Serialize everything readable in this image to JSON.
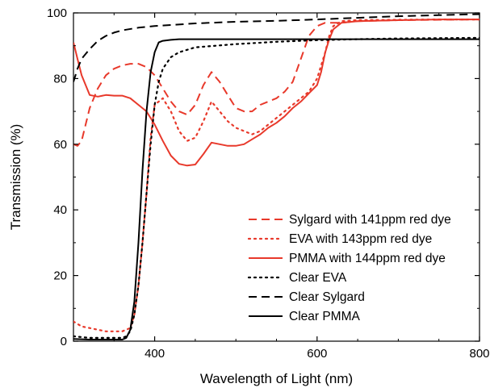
{
  "chart_data": {
    "type": "line",
    "xlabel": "Wavelength of Light (nm)",
    "ylabel": "Transmission (%)",
    "xlim": [
      300,
      800
    ],
    "ylim": [
      0,
      100
    ],
    "x_ticks": [
      400,
      600,
      800
    ],
    "y_ticks": [
      0,
      20,
      40,
      60,
      80,
      100
    ],
    "legend_position": "center-right",
    "series": [
      {
        "name": "Sylgard with 141ppm red dye",
        "color": "#e8392b",
        "dash": "dashed",
        "x": [
          300,
          305,
          310,
          315,
          320,
          330,
          340,
          350,
          360,
          370,
          380,
          390,
          400,
          410,
          420,
          430,
          440,
          450,
          460,
          470,
          480,
          490,
          500,
          510,
          520,
          530,
          540,
          550,
          560,
          570,
          580,
          590,
          600,
          610,
          620,
          630,
          650,
          700,
          750,
          800
        ],
        "y": [
          60,
          59.5,
          61,
          66,
          71,
          77,
          81,
          83,
          84,
          84.5,
          84.5,
          83.5,
          81,
          77,
          73,
          70,
          69,
          72,
          78,
          82,
          79,
          75,
          71,
          70,
          70,
          72,
          73,
          74,
          76,
          79,
          86,
          93,
          96,
          97,
          97,
          97,
          97.5,
          97.8,
          97.9,
          98
        ]
      },
      {
        "name": "EVA with 143ppm red dye",
        "color": "#e8392b",
        "dash": "dotted",
        "x": [
          300,
          310,
          320,
          330,
          340,
          350,
          360,
          370,
          375,
          380,
          385,
          390,
          395,
          400,
          410,
          420,
          430,
          440,
          450,
          460,
          470,
          480,
          490,
          500,
          510,
          520,
          530,
          540,
          550,
          560,
          570,
          580,
          590,
          600,
          610,
          615,
          620,
          630,
          650,
          700,
          750,
          800
        ],
        "y": [
          6,
          4.5,
          4,
          3.5,
          3,
          3,
          3,
          4,
          8,
          17,
          30,
          45,
          62,
          72,
          74,
          70,
          64,
          61,
          62,
          67,
          73,
          70,
          67,
          65,
          64,
          63,
          64,
          66,
          68,
          70,
          72,
          74,
          76,
          80,
          88,
          93,
          96,
          97.5,
          97.8,
          97.9,
          98,
          98
        ]
      },
      {
        "name": "PMMA with 144ppm red dye",
        "color": "#e8392b",
        "dash": "solid",
        "x": [
          300,
          305,
          310,
          315,
          320,
          330,
          340,
          350,
          360,
          370,
          380,
          390,
          400,
          410,
          420,
          430,
          440,
          450,
          460,
          470,
          480,
          490,
          500,
          510,
          520,
          530,
          540,
          550,
          560,
          570,
          580,
          590,
          600,
          605,
          610,
          615,
          620,
          630,
          650,
          700,
          750,
          800
        ],
        "y": [
          91,
          86,
          81,
          78,
          75,
          74.5,
          75,
          74.8,
          74.8,
          74,
          72,
          70,
          66,
          61,
          56.5,
          54,
          53.5,
          53.8,
          57,
          60.5,
          60,
          59.5,
          59.5,
          60,
          61.5,
          63,
          65,
          66.5,
          68.5,
          71,
          73,
          75.5,
          78,
          82,
          88,
          92,
          95,
          97,
          97.5,
          97.8,
          98,
          98
        ]
      },
      {
        "name": "Clear EVA",
        "color": "#000000",
        "dash": "dotted",
        "x": [
          300,
          320,
          340,
          360,
          365,
          370,
          375,
          380,
          385,
          390,
          395,
          400,
          405,
          410,
          420,
          430,
          450,
          500,
          550,
          600,
          650,
          700,
          750,
          800
        ],
        "y": [
          1.5,
          1,
          1,
          1,
          1.5,
          3,
          8,
          17,
          30,
          45,
          60,
          72,
          79,
          83,
          86.5,
          88,
          89.5,
          90.5,
          91.2,
          91.7,
          92,
          92.2,
          92.3,
          92.4
        ]
      },
      {
        "name": "Clear Sylgard",
        "color": "#000000",
        "dash": "dashed",
        "x": [
          300,
          305,
          310,
          315,
          320,
          330,
          340,
          350,
          360,
          380,
          400,
          450,
          500,
          550,
          600,
          650,
          700,
          750,
          780,
          800
        ],
        "y": [
          79,
          83,
          86,
          87.5,
          89,
          91.5,
          93,
          94,
          94.7,
          95.5,
          96,
          96.8,
          97.3,
          97.6,
          98,
          98.5,
          99,
          99.3,
          99.5,
          99.6
        ]
      },
      {
        "name": "Clear PMMA",
        "color": "#000000",
        "dash": "solid",
        "x": [
          300,
          320,
          340,
          350,
          360,
          365,
          370,
          375,
          380,
          385,
          390,
          395,
          400,
          405,
          410,
          420,
          430,
          450,
          500,
          550,
          600,
          650,
          700,
          750,
          800
        ],
        "y": [
          0.7,
          0.5,
          0.5,
          0.5,
          0.5,
          1,
          3.5,
          12,
          30,
          52,
          70,
          82,
          88,
          91,
          91.5,
          91.8,
          92,
          92,
          92,
          92,
          92,
          92,
          92,
          92,
          92
        ]
      }
    ]
  }
}
